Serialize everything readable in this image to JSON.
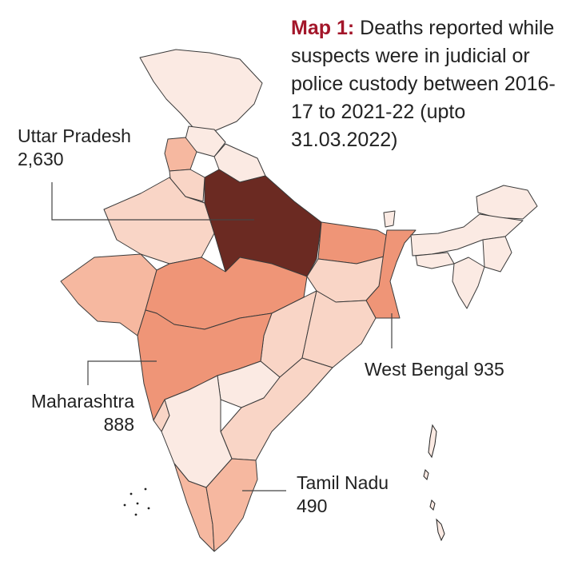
{
  "title": {
    "lead": "Map 1:",
    "text": "Deaths reported while suspects were in judicial or police custody between 2016-17 to 2021-22 (upto 31.03.2022)"
  },
  "callouts": {
    "uttar_pradesh": {
      "name": "Uttar Pradesh",
      "value": "2,630"
    },
    "west_bengal": {
      "name": "West Bengal",
      "value": "935"
    },
    "maharashtra": {
      "name": "Maharashtra",
      "value": "888"
    },
    "tamil_nadu": {
      "name": "Tamil Nadu",
      "value": "490"
    }
  },
  "colors": {
    "highest": "#6b2a22",
    "high": "#ef9577",
    "mid": "#f6b8a0",
    "low": "#f9d5c6",
    "lowest": "#fbeae3",
    "border": "#3a3a3a"
  }
}
